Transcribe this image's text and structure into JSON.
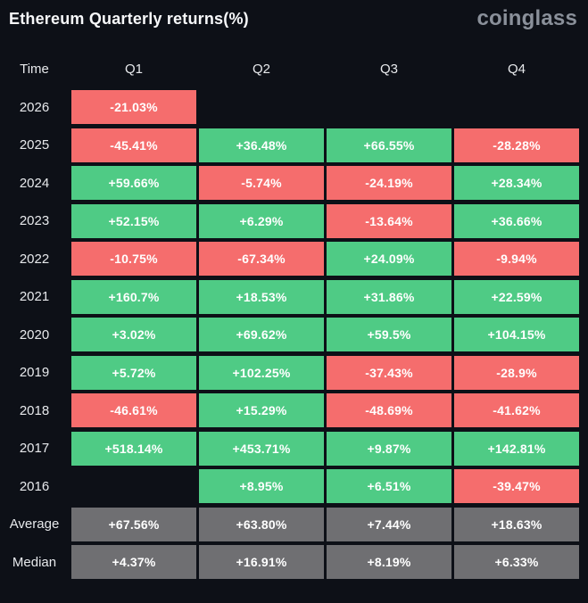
{
  "header": {
    "title": "Ethereum Quarterly returns(%)",
    "logo": "coinglass"
  },
  "colors": {
    "positive": "#4fcb85",
    "negative": "#f56d6d",
    "summary": "#6f6f72",
    "background": "#0d1017",
    "text": "#ffffff",
    "label_text": "#e7e9ec",
    "logo_gray": "#8a909a"
  },
  "table": {
    "columns": [
      "Time",
      "Q1",
      "Q2",
      "Q3",
      "Q4"
    ],
    "rows": [
      {
        "label": "2026",
        "kind": "year",
        "values": [
          "-21.03%",
          null,
          null,
          null
        ]
      },
      {
        "label": "2025",
        "kind": "year",
        "values": [
          "-45.41%",
          "+36.48%",
          "+66.55%",
          "-28.28%"
        ]
      },
      {
        "label": "2024",
        "kind": "year",
        "values": [
          "+59.66%",
          "-5.74%",
          "-24.19%",
          "+28.34%"
        ]
      },
      {
        "label": "2023",
        "kind": "year",
        "values": [
          "+52.15%",
          "+6.29%",
          "-13.64%",
          "+36.66%"
        ]
      },
      {
        "label": "2022",
        "kind": "year",
        "values": [
          "-10.75%",
          "-67.34%",
          "+24.09%",
          "-9.94%"
        ]
      },
      {
        "label": "2021",
        "kind": "year",
        "values": [
          "+160.7%",
          "+18.53%",
          "+31.86%",
          "+22.59%"
        ]
      },
      {
        "label": "2020",
        "kind": "year",
        "values": [
          "+3.02%",
          "+69.62%",
          "+59.5%",
          "+104.15%"
        ]
      },
      {
        "label": "2019",
        "kind": "year",
        "values": [
          "+5.72%",
          "+102.25%",
          "-37.43%",
          "-28.9%"
        ]
      },
      {
        "label": "2018",
        "kind": "year",
        "values": [
          "-46.61%",
          "+15.29%",
          "-48.69%",
          "-41.62%"
        ]
      },
      {
        "label": "2017",
        "kind": "year",
        "values": [
          "+518.14%",
          "+453.71%",
          "+9.87%",
          "+142.81%"
        ]
      },
      {
        "label": "2016",
        "kind": "year",
        "values": [
          null,
          "+8.95%",
          "+6.51%",
          "-39.47%"
        ]
      },
      {
        "label": "Average",
        "kind": "summary",
        "values": [
          "+67.56%",
          "+63.80%",
          "+7.44%",
          "+18.63%"
        ]
      },
      {
        "label": "Median",
        "kind": "summary",
        "values": [
          "+4.37%",
          "+16.91%",
          "+8.19%",
          "+6.33%"
        ]
      }
    ]
  },
  "chart_data": {
    "type": "heatmap",
    "title": "Ethereum Quarterly returns(%)",
    "columns": [
      "Q1",
      "Q2",
      "Q3",
      "Q4"
    ],
    "rows": [
      "2026",
      "2025",
      "2024",
      "2023",
      "2022",
      "2021",
      "2020",
      "2019",
      "2018",
      "2017",
      "2016",
      "Average",
      "Median"
    ],
    "values": [
      [
        -21.03,
        null,
        null,
        null
      ],
      [
        -45.41,
        36.48,
        66.55,
        -28.28
      ],
      [
        59.66,
        -5.74,
        -24.19,
        28.34
      ],
      [
        52.15,
        6.29,
        -13.64,
        36.66
      ],
      [
        -10.75,
        -67.34,
        24.09,
        -9.94
      ],
      [
        160.7,
        18.53,
        31.86,
        22.59
      ],
      [
        3.02,
        69.62,
        59.5,
        104.15
      ],
      [
        5.72,
        102.25,
        -37.43,
        -28.9
      ],
      [
        -46.61,
        15.29,
        -48.69,
        -41.62
      ],
      [
        518.14,
        453.71,
        9.87,
        142.81
      ],
      [
        null,
        8.95,
        6.51,
        -39.47
      ],
      [
        67.56,
        63.8,
        7.44,
        18.63
      ],
      [
        4.37,
        16.91,
        8.19,
        6.33
      ]
    ],
    "legend_position": "none",
    "grid": false,
    "color_rule": "positive=green, negative=red, summary rows (Average/Median)=gray, null=blank"
  }
}
